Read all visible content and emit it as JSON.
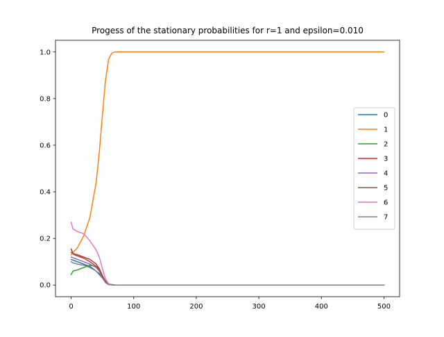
{
  "chart_data": {
    "type": "line",
    "title": "Progess of the stationary probabilities for r=1 and epsilon=0.010",
    "xlabel": "",
    "ylabel": "",
    "xlim": [
      -25,
      525
    ],
    "ylim": [
      -0.05,
      1.05
    ],
    "xticks": [
      0,
      100,
      200,
      300,
      400,
      500
    ],
    "yticks": [
      0.0,
      0.2,
      0.4,
      0.6,
      0.8,
      1.0
    ],
    "xtick_labels": [
      "0",
      "100",
      "200",
      "300",
      "400",
      "500"
    ],
    "ytick_labels": [
      "0.0",
      "0.2",
      "0.4",
      "0.6",
      "0.8",
      "1.0"
    ],
    "grid": false,
    "legend_position": "center-right",
    "series": [
      {
        "name": "0",
        "color": "#1f77b4",
        "points": [
          [
            0,
            0.11
          ],
          [
            10,
            0.1
          ],
          [
            20,
            0.09
          ],
          [
            30,
            0.08
          ],
          [
            40,
            0.06
          ],
          [
            50,
            0.03
          ],
          [
            60,
            0.005
          ],
          [
            70,
            0.0
          ],
          [
            100,
            0.0
          ],
          [
            500,
            0.0
          ]
        ]
      },
      {
        "name": "1",
        "color": "#ff7f0e",
        "points": [
          [
            0,
            0.13
          ],
          [
            10,
            0.16
          ],
          [
            20,
            0.21
          ],
          [
            30,
            0.29
          ],
          [
            40,
            0.44
          ],
          [
            45,
            0.57
          ],
          [
            50,
            0.73
          ],
          [
            55,
            0.88
          ],
          [
            60,
            0.97
          ],
          [
            65,
            0.995
          ],
          [
            70,
            1.0
          ],
          [
            100,
            1.0
          ],
          [
            500,
            1.0
          ]
        ]
      },
      {
        "name": "2",
        "color": "#2ca02c",
        "points": [
          [
            0,
            0.045
          ],
          [
            3,
            0.06
          ],
          [
            10,
            0.065
          ],
          [
            20,
            0.075
          ],
          [
            30,
            0.085
          ],
          [
            40,
            0.08
          ],
          [
            45,
            0.07
          ],
          [
            50,
            0.04
          ],
          [
            55,
            0.015
          ],
          [
            60,
            0.003
          ],
          [
            70,
            0.0
          ],
          [
            100,
            0.0
          ],
          [
            500,
            0.0
          ]
        ]
      },
      {
        "name": "3",
        "color": "#d62728",
        "points": [
          [
            0,
            0.155
          ],
          [
            3,
            0.135
          ],
          [
            10,
            0.13
          ],
          [
            20,
            0.12
          ],
          [
            30,
            0.11
          ],
          [
            40,
            0.09
          ],
          [
            45,
            0.07
          ],
          [
            50,
            0.04
          ],
          [
            55,
            0.015
          ],
          [
            60,
            0.003
          ],
          [
            70,
            0.0
          ],
          [
            100,
            0.0
          ],
          [
            500,
            0.0
          ]
        ]
      },
      {
        "name": "4",
        "color": "#9467bd",
        "points": [
          [
            0,
            0.12
          ],
          [
            10,
            0.11
          ],
          [
            20,
            0.1
          ],
          [
            30,
            0.09
          ],
          [
            40,
            0.075
          ],
          [
            45,
            0.06
          ],
          [
            50,
            0.035
          ],
          [
            55,
            0.012
          ],
          [
            60,
            0.002
          ],
          [
            70,
            0.0
          ],
          [
            100,
            0.0
          ],
          [
            500,
            0.0
          ]
        ]
      },
      {
        "name": "5",
        "color": "#8c564b",
        "points": [
          [
            0,
            0.14
          ],
          [
            5,
            0.13
          ],
          [
            10,
            0.125
          ],
          [
            20,
            0.115
          ],
          [
            30,
            0.1
          ],
          [
            40,
            0.08
          ],
          [
            45,
            0.065
          ],
          [
            50,
            0.035
          ],
          [
            55,
            0.012
          ],
          [
            60,
            0.002
          ],
          [
            70,
            0.0
          ],
          [
            100,
            0.0
          ],
          [
            500,
            0.0
          ]
        ]
      },
      {
        "name": "6",
        "color": "#e377c2",
        "points": [
          [
            0,
            0.27
          ],
          [
            3,
            0.24
          ],
          [
            10,
            0.23
          ],
          [
            20,
            0.22
          ],
          [
            30,
            0.19
          ],
          [
            40,
            0.15
          ],
          [
            45,
            0.12
          ],
          [
            50,
            0.07
          ],
          [
            55,
            0.025
          ],
          [
            60,
            0.005
          ],
          [
            70,
            0.0
          ],
          [
            100,
            0.0
          ],
          [
            500,
            0.0
          ]
        ]
      },
      {
        "name": "7",
        "color": "#7f7f7f",
        "points": [
          [
            0,
            0.1
          ],
          [
            3,
            0.095
          ],
          [
            10,
            0.09
          ],
          [
            20,
            0.085
          ],
          [
            30,
            0.075
          ],
          [
            40,
            0.06
          ],
          [
            45,
            0.05
          ],
          [
            50,
            0.03
          ],
          [
            55,
            0.01
          ],
          [
            60,
            0.002
          ],
          [
            70,
            0.0
          ],
          [
            100,
            0.0
          ],
          [
            500,
            0.0
          ]
        ]
      }
    ]
  }
}
